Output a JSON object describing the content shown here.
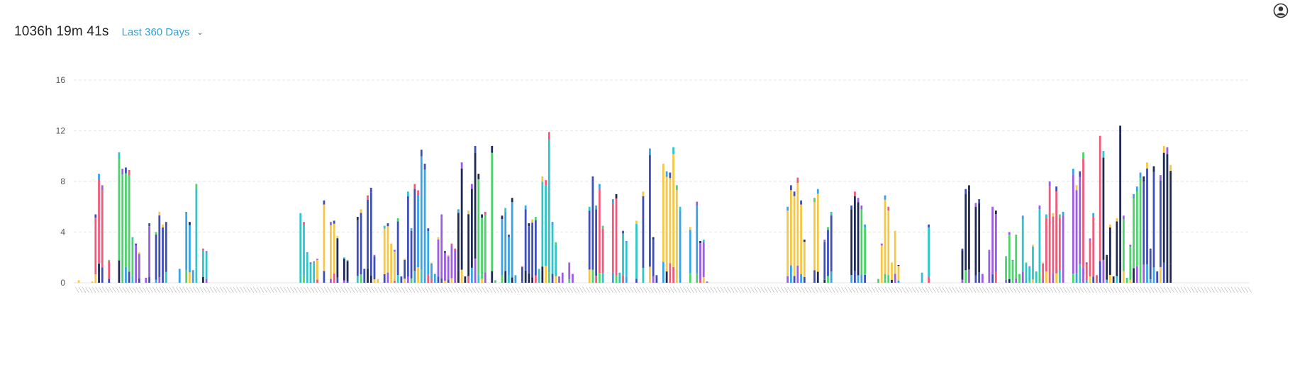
{
  "header": {
    "total_time": "1036h 19m 41s",
    "range_label": "Last 360 Days"
  },
  "icons": {
    "range_chevron": "chevron-down-icon",
    "account": "user-avatar-icon"
  },
  "colors": {
    "grid": "#e6e6e6",
    "axis_text": "#555555",
    "palette": [
      "#ef5b7a",
      "#2ec7c9",
      "#9b5de5",
      "#3f4fb5",
      "#4cd46b",
      "#3aa3e8",
      "#1f2a52",
      "#f6c744"
    ]
  },
  "chart_data": {
    "type": "bar",
    "stacked": true,
    "ylim": [
      0,
      16
    ],
    "yticks": [
      0,
      4,
      8,
      12,
      16
    ],
    "grid": true,
    "legend": "none",
    "day_count": 360,
    "tick_labels_note": "x tick labels are tiny rotated numbers, illegible",
    "day_totals": [
      0,
      0.2,
      0,
      0,
      0,
      0.1,
      5.4,
      8.6,
      7.7,
      0,
      1.8,
      0,
      0,
      10.3,
      9.0,
      9.1,
      8.9,
      3.6,
      3.1,
      2.4,
      0,
      0.4,
      4.7,
      0,
      4.0,
      5.6,
      4.6,
      4.8,
      0,
      0,
      0,
      1.1,
      0,
      5.6,
      4.8,
      1.0,
      7.8,
      0,
      2.7,
      2.5,
      0,
      0,
      0,
      0,
      0,
      0,
      0,
      0,
      0,
      0,
      0,
      0,
      0,
      0,
      0,
      0,
      0,
      0,
      0,
      0,
      0,
      0,
      0,
      0,
      0,
      0,
      0,
      5.5,
      4.8,
      2.4,
      1.6,
      1.7,
      1.9,
      0,
      6.5,
      0,
      4.8,
      4.9,
      3.7,
      0,
      2.0,
      1.8,
      0,
      0,
      5.2,
      5.8,
      1.1,
      6.9,
      7.5,
      2.2,
      0.3,
      0,
      4.5,
      4.7,
      3.1,
      2.6,
      5.1,
      0.5,
      1.9,
      7.2,
      4.3,
      7.8,
      7.3,
      10.5,
      9.4,
      4.3,
      1.6,
      0.7,
      3.6,
      5.4,
      2.5,
      2.2,
      3.1,
      2.7,
      5.8,
      9.5,
      0.5,
      5.7,
      7.8,
      10.8,
      8.6,
      5.4,
      5.6,
      0,
      10.8,
      0.2,
      0,
      5.3,
      5.9,
      3.8,
      6.7,
      0.6,
      0,
      1.3,
      6.1,
      4.7,
      5.0,
      5.2,
      1.1,
      8.4,
      8.1,
      11.9,
      4.8,
      3.2,
      0.5,
      0.8,
      0,
      1.6,
      0.7,
      0,
      0,
      0,
      0,
      6.0,
      8.4,
      6.1,
      7.8,
      4.5,
      0,
      0,
      6.6,
      7.0,
      0.8,
      4.1,
      3.3,
      0,
      0,
      4.9,
      0,
      7.2,
      0,
      10.6,
      3.6,
      0.6,
      0,
      9.4,
      8.8,
      8.7,
      10.7,
      7.7,
      6.0,
      0,
      0,
      4.4,
      0,
      6.4,
      3.3,
      3.4,
      0.1,
      0,
      0,
      0,
      0,
      0,
      0,
      0,
      0,
      0,
      0,
      0,
      0,
      0,
      0,
      0,
      0,
      0,
      0,
      0,
      0,
      0,
      0,
      0,
      6.0,
      7.7,
      7.2,
      8.3,
      6.5,
      3.4,
      0,
      0,
      6.7,
      7.4,
      0,
      3.4,
      4.4,
      5.6,
      0,
      0,
      0,
      0,
      0,
      6.1,
      7.2,
      6.7,
      6.1,
      4.6,
      0,
      0,
      0,
      0.3,
      3.1,
      6.9,
      6.0,
      1.6,
      4.1,
      1.4,
      0,
      0,
      0,
      0,
      0,
      0,
      0.8,
      0,
      4.6,
      0,
      0,
      0,
      0,
      0,
      0,
      0,
      0,
      0,
      2.7,
      7.4,
      7.7,
      0,
      6.3,
      6.6,
      0.7,
      0,
      2.6,
      6.0,
      5.7,
      0,
      0,
      2.1,
      4.0,
      1.8,
      3.8,
      0.7,
      5.3,
      1.6,
      1.3,
      3.0,
      0.9,
      6.1,
      1.6,
      5.4,
      8.0,
      5.5,
      7.6,
      5.4,
      5.6,
      0,
      0,
      9.0,
      7.7,
      8.8,
      10.3,
      1.6,
      3.5,
      5.5,
      0.6,
      11.6,
      10.4,
      2.2,
      4.6,
      0.5,
      5.1,
      12.4,
      5.3,
      0.4,
      3.0,
      7.0,
      7.6,
      8.7,
      8.4,
      9.5,
      2.7,
      9.2,
      0.9,
      8.5,
      10.8,
      10.7,
      9.3,
      0,
      0,
      0,
      0,
      0,
      0,
      0,
      0,
      0,
      0,
      0,
      0,
      0,
      0,
      0,
      0,
      0,
      0,
      0,
      0,
      0,
      0,
      0
    ]
  }
}
